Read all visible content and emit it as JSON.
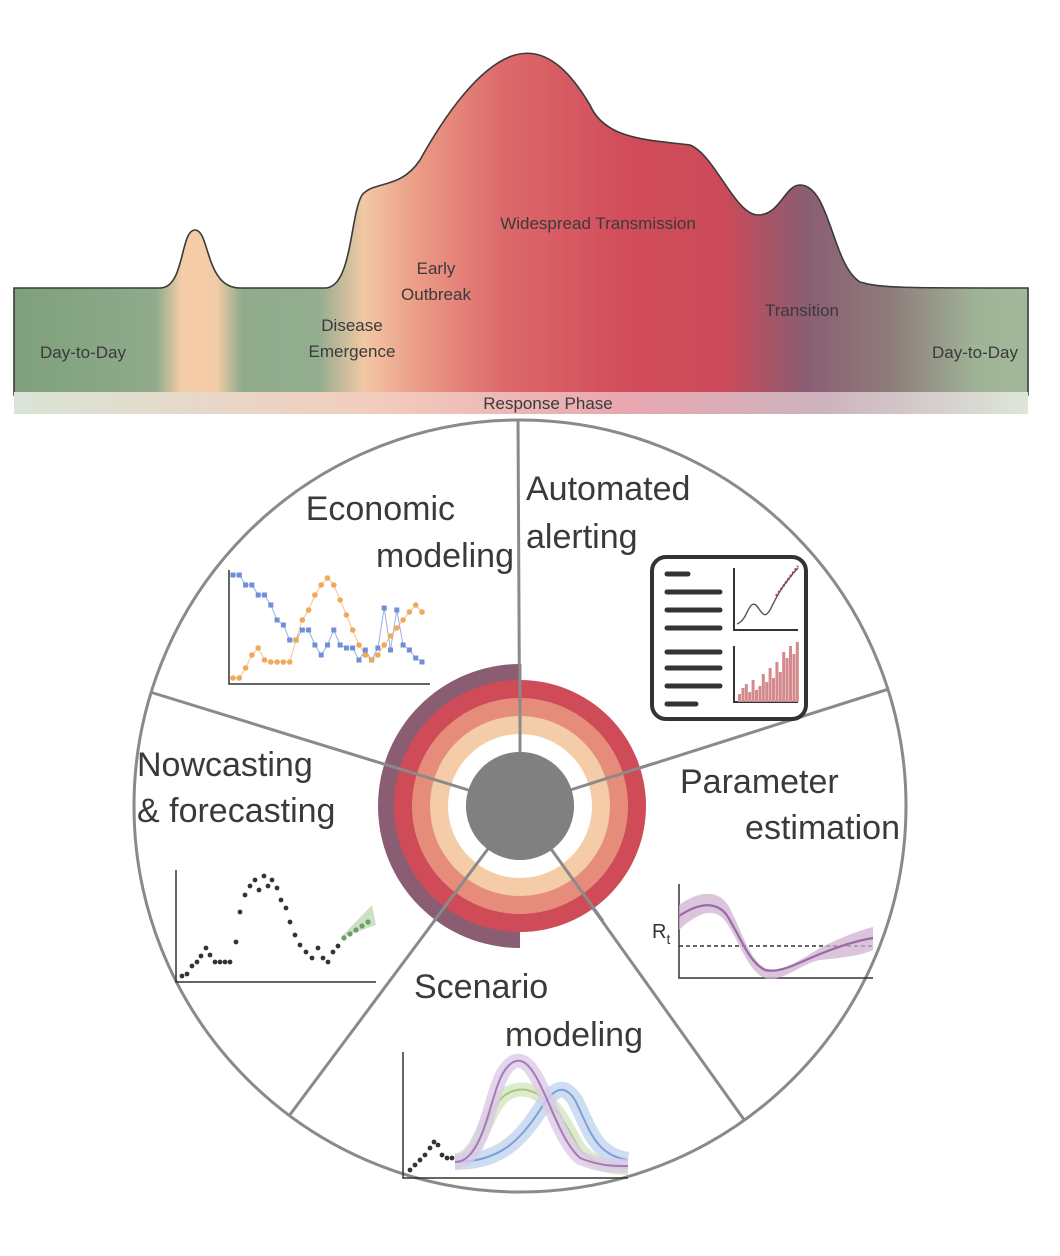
{
  "phases": {
    "day_to_day_left": "Day-to-Day",
    "disease_emergence_1": "Disease",
    "disease_emergence_2": "Emergence",
    "early_outbreak_1": "Early",
    "early_outbreak_2": "Outbreak",
    "widespread": "Widespread Transmission",
    "transition": "Transition",
    "day_to_day_right": "Day-to-Day",
    "response_phase": "Response Phase"
  },
  "segments": {
    "economic_1": "Economic",
    "economic_2": "modeling",
    "alerting_1": "Automated",
    "alerting_2": "alerting",
    "parameter_1": "Parameter",
    "parameter_2": "estimation",
    "scenario_1": "Scenario",
    "scenario_2": "modeling",
    "nowcasting_1": "Nowcasting",
    "nowcasting_2": "& forecasting",
    "rt_main": "R",
    "rt_sub": "t"
  },
  "colors": {
    "green": "#93ad8f",
    "peach": "#f4cca7",
    "salmon": "#e58d7a",
    "red": "#cf4b58",
    "purple": "#8a5d72",
    "hub": "#808080",
    "outline": "#888888",
    "blue_series": "#6f8fd6",
    "orange_series": "#f0a95a"
  },
  "icons": [
    "dashboard-icon"
  ]
}
